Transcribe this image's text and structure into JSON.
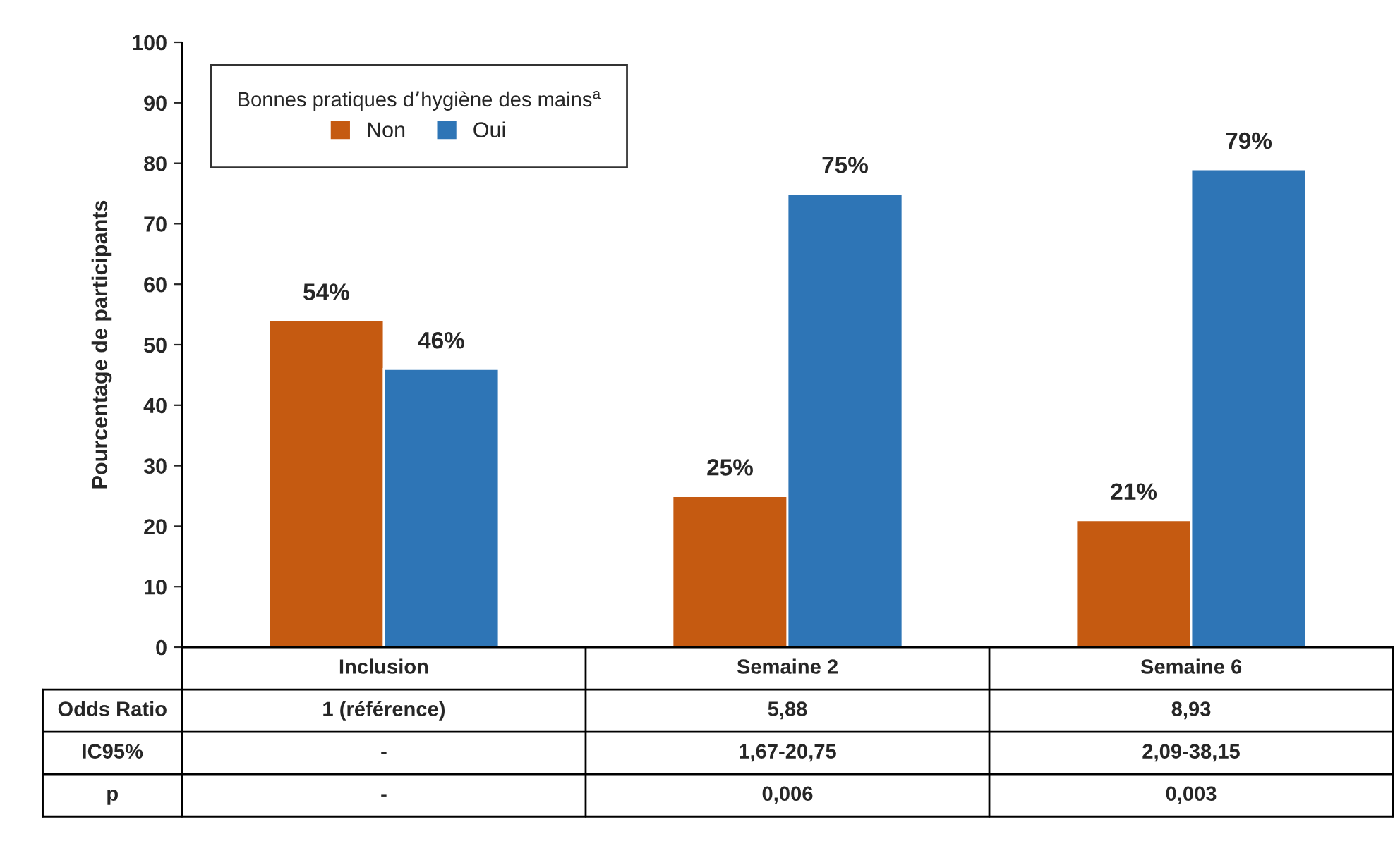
{
  "chart_data": {
    "type": "bar",
    "ylabel": "Pourcentage de participants",
    "legend_title": "Bonnes pratiques d’hygiène des mains$^{a}$",
    "categories": [
      "Inclusion",
      "Semaine 2",
      "Semaine 6"
    ],
    "series": [
      {
        "name": "Non",
        "color": "#c55a11",
        "values": [
          54,
          25,
          21
        ],
        "value_labels": [
          "54%",
          "25%",
          "21%"
        ]
      },
      {
        "name": "Oui",
        "color": "#2e75b6",
        "values": [
          46,
          75,
          79
        ],
        "value_labels": [
          "46%",
          "75%",
          "79%"
        ]
      }
    ],
    "ylim": [
      0,
      100
    ],
    "yticks": [
      0,
      10,
      20,
      30,
      40,
      50,
      60,
      70,
      80,
      90,
      100
    ],
    "grid": false,
    "legend": "top left",
    "annotations": [
      "Odds Ratio",
      "1 (référence)",
      "5,88",
      "8,93",
      "IC95%",
      "-",
      "1,67-20,75",
      "2,09-38,15",
      "p",
      "-",
      "0,006",
      "0,003"
    ]
  }
}
